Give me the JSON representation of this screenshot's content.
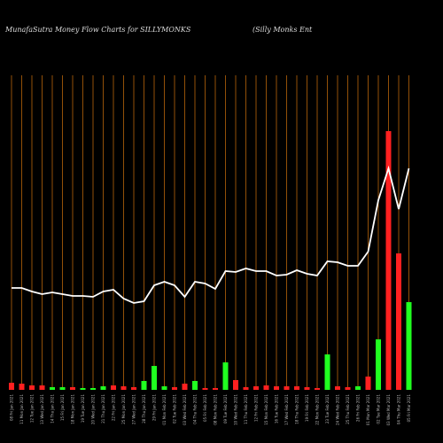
{
  "chart_data": {
    "type": "bar",
    "title": "MunafaSutra  Money Flow  Charts for SILLYMONKS",
    "subtitle": "(Silly Monks Ent",
    "categories": [
      "08 Fri Jan 2021",
      "11 Mon Jan 2021",
      "12 Tue Jan 2021",
      "13 Wed Jan 2021",
      "14 Thu Jan 2021",
      "15 Fri Jan 2021",
      "18 Mon Jan 2021",
      "19 Tue Jan 2021",
      "20 Wed Jan 2021",
      "21 Thu Jan 2021",
      "22 Fri Jan 2021",
      "25 Mon Jan 2021",
      "27 Wed Jan 2021",
      "28 Thu Jan 2021",
      "29 Fri Jan 2021",
      "01 Mon Feb 2021",
      "02 Tue Feb 2021",
      "03 Wed Feb 2021",
      "04 Thu Feb 2021",
      "05 Fri Feb 2021",
      "08 Mon Feb 2021",
      "09 Tue Feb 2021",
      "10 Wed Feb 2021",
      "11 Thu Feb 2021",
      "12 Fri Feb 2021",
      "15 Mon Feb 2021",
      "16 Tue Feb 2021",
      "17 Wed Feb 2021",
      "18 Thu Feb 2021",
      "19 Fri Feb 2021",
      "22 Mon Feb 2021",
      "23 Tue Feb 2021",
      "24 Wed Feb 2021",
      "25 Thu Feb 2021",
      "26 Fri Feb 2021",
      "01 Mon Mar 2021",
      "02 Tue Mar 2021",
      "03 Wed Mar 2021",
      "04 Thu Mar 2021",
      "05 Fri Mar 2021"
    ],
    "values": [
      8,
      7,
      5,
      5,
      3,
      3,
      3,
      2,
      2,
      4,
      5,
      4,
      3,
      10,
      27,
      4,
      3,
      7,
      10,
      2,
      2,
      31,
      11,
      3,
      4,
      5,
      4,
      4,
      4,
      3,
      2,
      40,
      4,
      3,
      4,
      15,
      57,
      292,
      154,
      99
    ],
    "colors": [
      "#ff2020",
      "#ff2020",
      "#ff2020",
      "#ff2020",
      "#20ff20",
      "#20ff20",
      "#ff2020",
      "#20ff20",
      "#20ff20",
      "#20ff20",
      "#ff2020",
      "#ff2020",
      "#ff2020",
      "#20ff20",
      "#20ff20",
      "#20ff20",
      "#ff2020",
      "#ff2020",
      "#20ff20",
      "#ff2020",
      "#ff2020",
      "#20ff20",
      "#ff2020",
      "#ff2020",
      "#ff2020",
      "#ff2020",
      "#ff2020",
      "#ff2020",
      "#ff2020",
      "#ff2020",
      "#ff2020",
      "#20ff20",
      "#ff2020",
      "#ff2020",
      "#20ff20",
      "#ff2020",
      "#20ff20",
      "#ff2020",
      "#ff2020",
      "#20ff20"
    ],
    "line": {
      "color": "#ffffff",
      "values": [
        115,
        115,
        111,
        108,
        110,
        108,
        106,
        106,
        105,
        111,
        113,
        103,
        98,
        100,
        118,
        122,
        118,
        105,
        122,
        120,
        114,
        134,
        133,
        137,
        134,
        134,
        129,
        130,
        135,
        131,
        129,
        145,
        144,
        140,
        140,
        156,
        214,
        250,
        204,
        250
      ]
    },
    "grid_color": "#b8640a"
  }
}
